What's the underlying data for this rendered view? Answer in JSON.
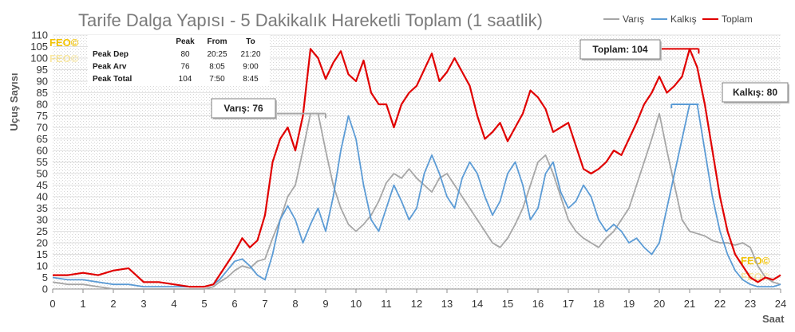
{
  "chart_data": {
    "type": "line",
    "title": "Tarife Dalga Yapısı - 5 Dakikalık Hareketli Toplam (1 saatlik)",
    "xlabel": "Saat",
    "ylabel": "Uçuş Sayısı",
    "xlim": [
      0,
      24
    ],
    "ylim": [
      0,
      110
    ],
    "x_ticks": [
      "0",
      "1",
      "2",
      "3",
      "4",
      "5",
      "6",
      "7",
      "8",
      "9",
      "10",
      "11",
      "12",
      "13",
      "14",
      "15",
      "16",
      "17",
      "18",
      "19",
      "20",
      "21",
      "22",
      "23",
      "24"
    ],
    "y_ticks": [
      "0",
      "5",
      "10",
      "15",
      "20",
      "25",
      "30",
      "35",
      "40",
      "45",
      "50",
      "55",
      "60",
      "65",
      "70",
      "75",
      "80",
      "85",
      "90",
      "95",
      "100",
      "105",
      "110"
    ],
    "grid": true,
    "legend_position": "top-right",
    "series": [
      {
        "name": "Varış",
        "color": "#a6a6a6",
        "x": [
          0,
          0.5,
          1,
          1.5,
          2,
          2.5,
          3,
          3.5,
          4,
          4.5,
          5,
          5.3,
          5.5,
          5.75,
          6,
          6.25,
          6.5,
          6.75,
          7,
          7.25,
          7.5,
          7.75,
          8,
          8.25,
          8.5,
          8.75,
          9,
          9.25,
          9.5,
          9.75,
          10,
          10.25,
          10.5,
          10.75,
          11,
          11.25,
          11.5,
          11.75,
          12,
          12.25,
          12.5,
          12.75,
          13,
          13.25,
          13.5,
          13.75,
          14,
          14.25,
          14.5,
          14.75,
          15,
          15.25,
          15.5,
          15.75,
          16,
          16.25,
          16.5,
          16.75,
          17,
          17.25,
          17.5,
          17.75,
          18,
          18.25,
          18.5,
          18.75,
          19,
          19.25,
          19.5,
          19.75,
          20,
          20.25,
          20.5,
          20.75,
          21,
          21.25,
          21.5,
          21.75,
          22,
          22.25,
          22.5,
          22.75,
          23,
          23.25,
          23.5,
          23.75,
          24
        ],
        "values": [
          3,
          2,
          2,
          1,
          0,
          0,
          0,
          0,
          0,
          0,
          0,
          1,
          3,
          5,
          8,
          10,
          9,
          12,
          13,
          22,
          30,
          40,
          45,
          60,
          76,
          76,
          60,
          45,
          35,
          28,
          25,
          28,
          32,
          38,
          46,
          50,
          48,
          52,
          48,
          45,
          42,
          48,
          50,
          45,
          40,
          35,
          30,
          25,
          20,
          18,
          22,
          28,
          35,
          45,
          55,
          58,
          50,
          40,
          30,
          25,
          22,
          20,
          18,
          22,
          25,
          30,
          35,
          45,
          55,
          65,
          76,
          60,
          45,
          30,
          25,
          24,
          23,
          21,
          20,
          20,
          19,
          20,
          18,
          10,
          5,
          3,
          2
        ]
      },
      {
        "name": "Kalkış",
        "color": "#5b9bd5",
        "x": [
          0,
          0.5,
          1,
          1.5,
          2,
          2.5,
          3,
          3.5,
          4,
          4.5,
          5,
          5.3,
          5.5,
          5.75,
          6,
          6.25,
          6.5,
          6.75,
          7,
          7.25,
          7.5,
          7.75,
          8,
          8.25,
          8.5,
          8.75,
          9,
          9.25,
          9.5,
          9.75,
          10,
          10.25,
          10.5,
          10.75,
          11,
          11.25,
          11.5,
          11.75,
          12,
          12.25,
          12.5,
          12.75,
          13,
          13.25,
          13.5,
          13.75,
          14,
          14.25,
          14.5,
          14.75,
          15,
          15.25,
          15.5,
          15.75,
          16,
          16.25,
          16.5,
          16.75,
          17,
          17.25,
          17.5,
          17.75,
          18,
          18.25,
          18.5,
          18.75,
          19,
          19.25,
          19.5,
          19.75,
          20,
          20.25,
          20.5,
          20.75,
          21,
          21.25,
          21.5,
          21.75,
          22,
          22.25,
          22.5,
          22.75,
          23,
          23.25,
          23.5,
          23.75,
          24
        ],
        "values": [
          5,
          4,
          4,
          3,
          2,
          2,
          1,
          1,
          1,
          1,
          1,
          2,
          4,
          8,
          12,
          13,
          10,
          6,
          4,
          15,
          30,
          36,
          30,
          20,
          28,
          35,
          25,
          40,
          60,
          75,
          65,
          45,
          30,
          25,
          35,
          45,
          38,
          30,
          35,
          50,
          58,
          50,
          40,
          35,
          48,
          55,
          50,
          40,
          32,
          38,
          50,
          55,
          45,
          30,
          35,
          50,
          55,
          42,
          35,
          38,
          45,
          40,
          30,
          25,
          28,
          25,
          20,
          22,
          18,
          15,
          20,
          35,
          50,
          65,
          80,
          80,
          60,
          40,
          25,
          15,
          8,
          4,
          2,
          1,
          1,
          1,
          2
        ]
      },
      {
        "name": "Toplam",
        "color": "#e00000",
        "x": [
          0,
          0.5,
          1,
          1.5,
          2,
          2.5,
          3,
          3.5,
          4,
          4.5,
          5,
          5.3,
          5.5,
          5.75,
          6,
          6.25,
          6.5,
          6.75,
          7,
          7.25,
          7.5,
          7.75,
          8,
          8.25,
          8.5,
          8.75,
          9,
          9.25,
          9.5,
          9.75,
          10,
          10.25,
          10.5,
          10.75,
          11,
          11.25,
          11.5,
          11.75,
          12,
          12.25,
          12.5,
          12.75,
          13,
          13.25,
          13.5,
          13.75,
          14,
          14.25,
          14.5,
          14.75,
          15,
          15.25,
          15.5,
          15.75,
          16,
          16.25,
          16.5,
          16.75,
          17,
          17.25,
          17.5,
          17.75,
          18,
          18.25,
          18.5,
          18.75,
          19,
          19.25,
          19.5,
          19.75,
          20,
          20.25,
          20.5,
          20.75,
          21,
          21.25,
          21.5,
          21.75,
          22,
          22.25,
          22.5,
          22.75,
          23,
          23.25,
          23.5,
          23.75,
          24
        ],
        "values": [
          6,
          6,
          7,
          6,
          8,
          9,
          3,
          3,
          2,
          1,
          1,
          2,
          6,
          11,
          16,
          22,
          18,
          21,
          32,
          55,
          65,
          70,
          60,
          75,
          104,
          100,
          91,
          98,
          103,
          93,
          90,
          99,
          85,
          80,
          80,
          70,
          80,
          85,
          88,
          95,
          102,
          90,
          94,
          100,
          94,
          88,
          75,
          65,
          68,
          72,
          64,
          70,
          76,
          86,
          83,
          78,
          68,
          70,
          72,
          62,
          52,
          50,
          52,
          55,
          60,
          58,
          65,
          72,
          80,
          85,
          92,
          85,
          88,
          92,
          104,
          96,
          80,
          60,
          40,
          25,
          15,
          10,
          5,
          3,
          5,
          4,
          6
        ]
      }
    ],
    "peak_table": {
      "headers": [
        "",
        "Peak",
        "From",
        "To"
      ],
      "rows": [
        [
          "Peak Dep",
          "80",
          "20:25",
          "21:20"
        ],
        [
          "Peak Arv",
          "76",
          "8:05",
          "9:00"
        ],
        [
          "Peak Total",
          "104",
          "7:50",
          "8:45"
        ]
      ]
    },
    "annotations": [
      {
        "text": "Varış: 76",
        "series": "Varış",
        "from_x": 8.08,
        "to_x": 9.0,
        "y": 76
      },
      {
        "text": "Toplam: 104",
        "series": "Toplam",
        "from_x": 19.8,
        "to_x": 21.3,
        "y": 104
      },
      {
        "text": "Kalkış: 80",
        "series": "Kalkış",
        "from_x": 20.4,
        "to_x": 21.3,
        "y": 80
      }
    ],
    "watermark": "FEO©"
  }
}
